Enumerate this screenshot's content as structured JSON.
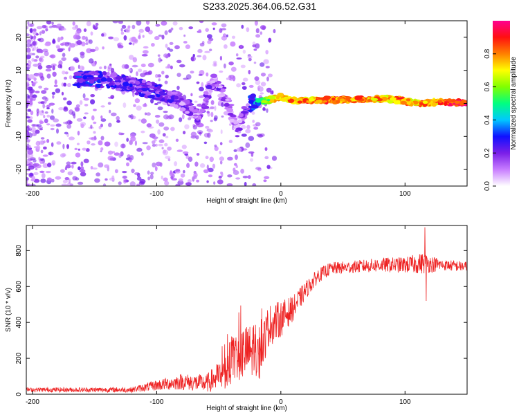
{
  "title": "S233.2025.364.06.52.G31",
  "chart_data": [
    {
      "type": "heatmap",
      "xlabel": "Height of straight line (km)",
      "ylabel": "Frequency (Hz)",
      "xlim": [
        -205,
        150
      ],
      "ylim": [
        -25,
        25
      ],
      "xticks": [
        -200,
        -100,
        0,
        100
      ],
      "yticks": [
        -20,
        -10,
        0,
        10,
        20
      ],
      "colorbar": {
        "label": "Normalized spectral amplitude",
        "range": [
          0,
          1
        ],
        "ticks": [
          0.0,
          0.2,
          0.4,
          0.6,
          0.8
        ],
        "colors": [
          "#ffffff",
          "#c87dff",
          "#7a1ee8",
          "#1010ff",
          "#00c8ff",
          "#00ff80",
          "#80ff00",
          "#ffff00",
          "#ff8000",
          "#ff1010",
          "#ff0090"
        ]
      },
      "ridge": [
        {
          "x": -160,
          "y": 7.5,
          "a": 0.25
        },
        {
          "x": -140,
          "y": 7,
          "a": 0.2
        },
        {
          "x": -120,
          "y": 5.5,
          "a": 0.2
        },
        {
          "x": -100,
          "y": 3.5,
          "a": 0.2
        },
        {
          "x": -80,
          "y": 0.5,
          "a": 0.15
        },
        {
          "x": -65,
          "y": -4.5,
          "a": 0.12
        },
        {
          "x": -55,
          "y": 7,
          "a": 0.15
        },
        {
          "x": -45,
          "y": 2,
          "a": 0.12
        },
        {
          "x": -35,
          "y": -7,
          "a": 0.08
        },
        {
          "x": -25,
          "y": 0,
          "a": 0.25
        },
        {
          "x": -10,
          "y": 1,
          "a": 0.6
        },
        {
          "x": 0,
          "y": 2,
          "a": 0.8
        },
        {
          "x": 10,
          "y": 1,
          "a": 0.75
        },
        {
          "x": 30,
          "y": 1,
          "a": 0.8
        },
        {
          "x": 60,
          "y": 1,
          "a": 0.8
        },
        {
          "x": 80,
          "y": 1.5,
          "a": 0.75
        },
        {
          "x": 95,
          "y": 1,
          "a": 0.8
        },
        {
          "x": 110,
          "y": 0,
          "a": 0.75
        },
        {
          "x": 130,
          "y": 0.5,
          "a": 0.8
        },
        {
          "x": 150,
          "y": 0,
          "a": 0.95
        }
      ]
    },
    {
      "type": "line",
      "xlabel": "Height of straight line (km)",
      "ylabel": "SNR (10 * v/v)",
      "xlim": [
        -205,
        150
      ],
      "ylim": [
        0,
        940
      ],
      "xticks": [
        -200,
        -100,
        0,
        100
      ],
      "yticks": [
        0,
        200,
        400,
        600,
        800
      ],
      "color": "#ee2222",
      "envelope": [
        {
          "x": -205,
          "mean": 25,
          "noise": 12
        },
        {
          "x": -120,
          "mean": 25,
          "noise": 15
        },
        {
          "x": -100,
          "mean": 50,
          "noise": 30
        },
        {
          "x": -80,
          "mean": 70,
          "noise": 45
        },
        {
          "x": -60,
          "mean": 60,
          "noise": 50
        },
        {
          "x": -45,
          "mean": 120,
          "noise": 100
        },
        {
          "x": -35,
          "mean": 220,
          "noise": 150
        },
        {
          "x": -25,
          "mean": 240,
          "noise": 150
        },
        {
          "x": -18,
          "mean": 200,
          "noise": 140
        },
        {
          "x": -10,
          "mean": 380,
          "noise": 120
        },
        {
          "x": 0,
          "mean": 420,
          "noise": 100
        },
        {
          "x": 10,
          "mean": 480,
          "noise": 70
        },
        {
          "x": 20,
          "mean": 580,
          "noise": 50
        },
        {
          "x": 30,
          "mean": 660,
          "noise": 40
        },
        {
          "x": 40,
          "mean": 700,
          "noise": 35
        },
        {
          "x": 60,
          "mean": 710,
          "noise": 35
        },
        {
          "x": 80,
          "mean": 720,
          "noise": 40
        },
        {
          "x": 100,
          "mean": 720,
          "noise": 45
        },
        {
          "x": 115,
          "mean": 730,
          "noise": 60
        },
        {
          "x": 130,
          "mean": 720,
          "noise": 30
        },
        {
          "x": 150,
          "mean": 710,
          "noise": 30
        }
      ],
      "spikes": [
        {
          "x": 116,
          "y": 930
        },
        {
          "x": 117,
          "y": 520
        }
      ]
    }
  ]
}
